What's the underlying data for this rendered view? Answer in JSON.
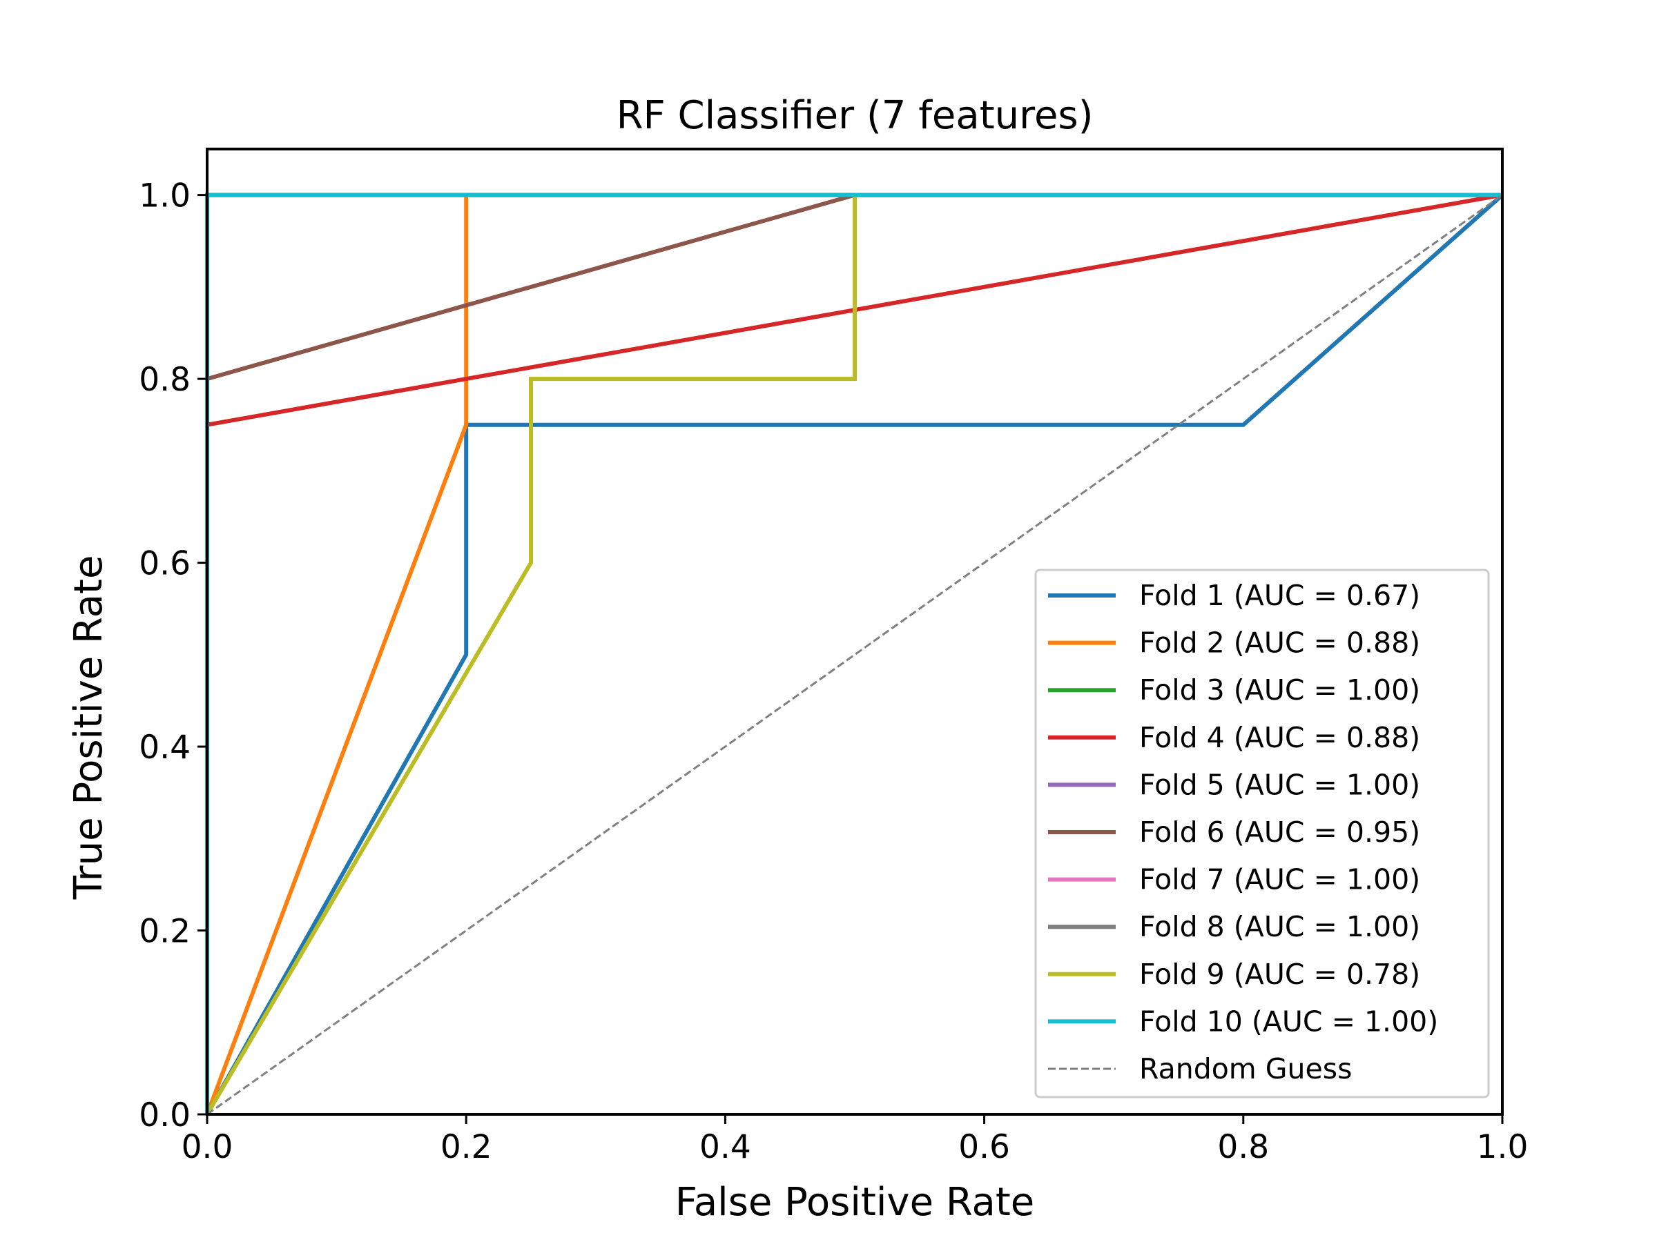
{
  "chart_data": {
    "type": "line",
    "title": "RF Classifier (7 features)",
    "xlabel": "False Positive Rate",
    "ylabel": "True Positive Rate",
    "xlim": [
      0.0,
      1.0
    ],
    "ylim": [
      0.0,
      1.05
    ],
    "xticks": [
      "0.0",
      "0.2",
      "0.4",
      "0.6",
      "0.8",
      "1.0"
    ],
    "yticks": [
      "0.0",
      "0.2",
      "0.4",
      "0.6",
      "0.8",
      "1.0"
    ],
    "grid": false,
    "legend_position": "lower-right",
    "series": [
      {
        "name": "Fold 1 (AUC = 0.67)",
        "color": "#1f77b4",
        "style": "solid",
        "x": [
          0.0,
          0.2,
          0.2,
          0.8,
          1.0
        ],
        "y": [
          0.0,
          0.5,
          0.75,
          0.75,
          1.0
        ]
      },
      {
        "name": "Fold 2 (AUC = 0.88)",
        "color": "#ff7f0e",
        "style": "solid",
        "x": [
          0.0,
          0.2,
          0.2,
          1.0
        ],
        "y": [
          0.0,
          0.75,
          1.0,
          1.0
        ]
      },
      {
        "name": "Fold 3 (AUC = 1.00)",
        "color": "#2ca02c",
        "style": "solid",
        "x": [
          0.0,
          0.0,
          1.0
        ],
        "y": [
          0.0,
          1.0,
          1.0
        ]
      },
      {
        "name": "Fold 4 (AUC = 0.88)",
        "color": "#d62728",
        "style": "solid",
        "x": [
          0.0,
          0.0,
          1.0
        ],
        "y": [
          0.0,
          0.75,
          1.0
        ]
      },
      {
        "name": "Fold 5 (AUC = 1.00)",
        "color": "#9467bd",
        "style": "solid",
        "x": [
          0.0,
          0.0,
          1.0
        ],
        "y": [
          0.0,
          1.0,
          1.0
        ]
      },
      {
        "name": "Fold 6 (AUC = 0.95)",
        "color": "#8c564b",
        "style": "solid",
        "x": [
          0.0,
          0.0,
          0.5,
          1.0
        ],
        "y": [
          0.0,
          0.8,
          1.0,
          1.0
        ]
      },
      {
        "name": "Fold 7 (AUC = 1.00)",
        "color": "#e377c2",
        "style": "solid",
        "x": [
          0.0,
          0.0,
          1.0
        ],
        "y": [
          0.0,
          1.0,
          1.0
        ]
      },
      {
        "name": "Fold 8 (AUC = 1.00)",
        "color": "#7f7f7f",
        "style": "solid",
        "x": [
          0.0,
          0.0,
          1.0
        ],
        "y": [
          0.0,
          1.0,
          1.0
        ]
      },
      {
        "name": "Fold 9 (AUC = 0.78)",
        "color": "#bcbd22",
        "style": "solid",
        "x": [
          0.0,
          0.25,
          0.25,
          0.5,
          0.5,
          1.0
        ],
        "y": [
          0.0,
          0.6,
          0.8,
          0.8,
          1.0,
          1.0
        ]
      },
      {
        "name": "Fold 10 (AUC = 1.00)",
        "color": "#17becf",
        "style": "solid",
        "x": [
          0.0,
          0.0,
          1.0
        ],
        "y": [
          0.0,
          1.0,
          1.0
        ]
      },
      {
        "name": "Random Guess",
        "color": "#808080",
        "style": "dashed",
        "x": [
          0.0,
          1.0
        ],
        "y": [
          0.0,
          1.0
        ]
      }
    ]
  }
}
